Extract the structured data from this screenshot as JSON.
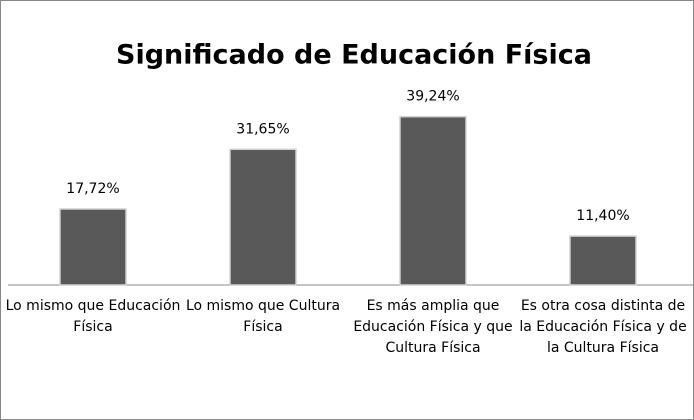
{
  "chart_data": {
    "type": "bar",
    "title": "Significado de Educación Física",
    "categories": [
      "Lo mismo que Educación Física",
      "Lo mismo que Cultura Física",
      "Es más amplia que Educación Física y que Cultura Física",
      "Es otra cosa distinta de la Educación Física y de la Cultura Física"
    ],
    "values": [
      17.72,
      31.65,
      39.24,
      11.4
    ],
    "value_labels": [
      "17,72%",
      "31,65%",
      "39,24%",
      "11,40%"
    ],
    "color": "#595959",
    "ylim": [
      0,
      45
    ]
  }
}
